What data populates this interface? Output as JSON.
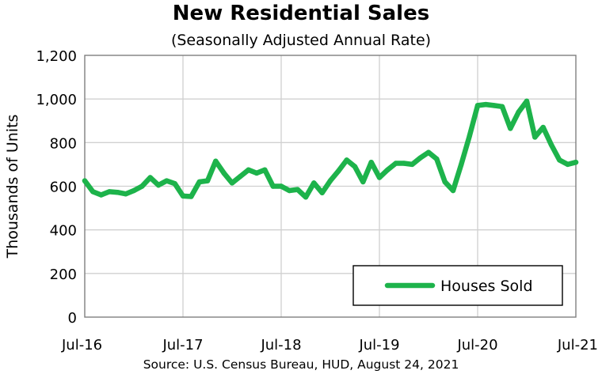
{
  "chart_data": {
    "type": "line",
    "title": "New Residential Sales",
    "subtitle": "(Seasonally Adjusted Annual Rate)",
    "source": "Source:  U.S. Census Bureau, HUD, August 24, 2021",
    "ylabel": "Thousands of Units",
    "xlabel": "",
    "ylim": [
      0,
      1200
    ],
    "yticks": [
      "0",
      "200",
      "400",
      "600",
      "800",
      "1,000",
      "1,200"
    ],
    "xticks": [
      "Jul-16",
      "Jul-17",
      "Jul-18",
      "Jul-19",
      "Jul-20",
      "Jul-21"
    ],
    "grid": true,
    "legend_position": "bottom-right",
    "series": [
      {
        "name": "Houses Sold",
        "color": "#1db34b",
        "x": [
          "Jul-16",
          "Aug-16",
          "Sep-16",
          "Oct-16",
          "Nov-16",
          "Dec-16",
          "Jan-17",
          "Feb-17",
          "Mar-17",
          "Apr-17",
          "May-17",
          "Jun-17",
          "Jul-17",
          "Aug-17",
          "Sep-17",
          "Oct-17",
          "Nov-17",
          "Dec-17",
          "Jan-18",
          "Feb-18",
          "Mar-18",
          "Apr-18",
          "May-18",
          "Jun-18",
          "Jul-18",
          "Aug-18",
          "Sep-18",
          "Oct-18",
          "Nov-18",
          "Dec-18",
          "Jan-19",
          "Feb-19",
          "Mar-19",
          "Apr-19",
          "May-19",
          "Jun-19",
          "Jul-19",
          "Aug-19",
          "Sep-19",
          "Oct-19",
          "Nov-19",
          "Dec-19",
          "Jan-20",
          "Feb-20",
          "Mar-20",
          "Apr-20",
          "May-20",
          "Jun-20",
          "Jul-20",
          "Aug-20",
          "Sep-20",
          "Oct-20",
          "Nov-20",
          "Dec-20",
          "Jan-21",
          "Feb-21",
          "Mar-21",
          "Apr-21",
          "May-21",
          "Jun-21",
          "Jul-21"
        ],
        "values": [
          625,
          575,
          560,
          575,
          572,
          565,
          580,
          600,
          640,
          605,
          625,
          612,
          555,
          553,
          620,
          625,
          715,
          660,
          615,
          645,
          675,
          660,
          675,
          600,
          600,
          580,
          585,
          550,
          615,
          570,
          625,
          670,
          720,
          690,
          620,
          710,
          640,
          675,
          705,
          705,
          700,
          730,
          755,
          725,
          620,
          580,
          700,
          830,
          970,
          975,
          970,
          965,
          865,
          940,
          990,
          825,
          870,
          790,
          720,
          700,
          710
        ]
      }
    ]
  }
}
